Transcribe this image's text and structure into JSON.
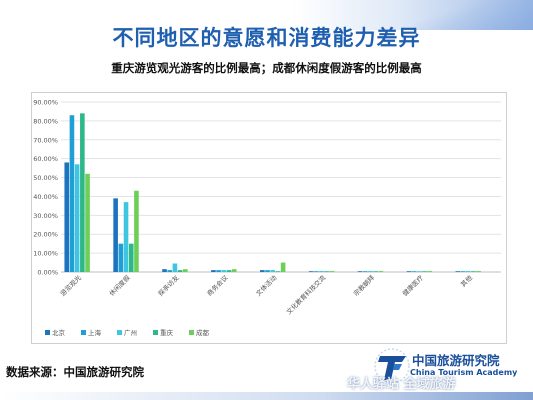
{
  "page": {
    "title": "不同地区的意愿和消费能力差异",
    "subtitle": "重庆游览观光游客的比例最高；成都休闲度假游客的比例最高",
    "source": "数据来源：中国旅游研究院",
    "logo": {
      "name_cn": "中国旅游研究院",
      "name_en": "China Tourism Academy"
    },
    "watermark": "华人驿站 全域旅游"
  },
  "colors": {
    "title": "#1f5fb0",
    "series": [
      "#1e73be",
      "#1f9fd6",
      "#3ec6e0",
      "#2eb88a",
      "#6ccf5a"
    ]
  },
  "chart_data": {
    "type": "bar",
    "title": "",
    "xlabel": "",
    "ylabel": "",
    "ylim": [
      0,
      0.9
    ],
    "yticks": [
      "0.00%",
      "10.00%",
      "20.00%",
      "30.00%",
      "40.00%",
      "50.00%",
      "60.00%",
      "70.00%",
      "80.00%",
      "90.00%"
    ],
    "grid": true,
    "legend_position": "bottom-left",
    "categories": [
      "游览观光",
      "休闲度假",
      "探亲访友",
      "商务会议",
      "文体活动",
      "文化教育科技交流",
      "宗教朝拜",
      "健康医疗",
      "其他"
    ],
    "series": [
      {
        "name": "北京",
        "values": [
          0.58,
          0.39,
          0.015,
          0.01,
          0.01,
          0.0,
          0.0,
          0.0,
          0.0
        ]
      },
      {
        "name": "上海",
        "values": [
          0.83,
          0.15,
          0.01,
          0.01,
          0.01,
          0.0,
          0.0,
          0.0,
          0.0
        ]
      },
      {
        "name": "广州",
        "values": [
          0.57,
          0.37,
          0.045,
          0.01,
          0.01,
          0.005,
          0.005,
          0.0,
          0.005
        ]
      },
      {
        "name": "重庆",
        "values": [
          0.84,
          0.15,
          0.01,
          0.01,
          0.0,
          0.0,
          0.0,
          0.0,
          0.0
        ]
      },
      {
        "name": "成都",
        "values": [
          0.52,
          0.43,
          0.015,
          0.015,
          0.05,
          0.005,
          0.005,
          0.005,
          0.005
        ]
      }
    ]
  }
}
